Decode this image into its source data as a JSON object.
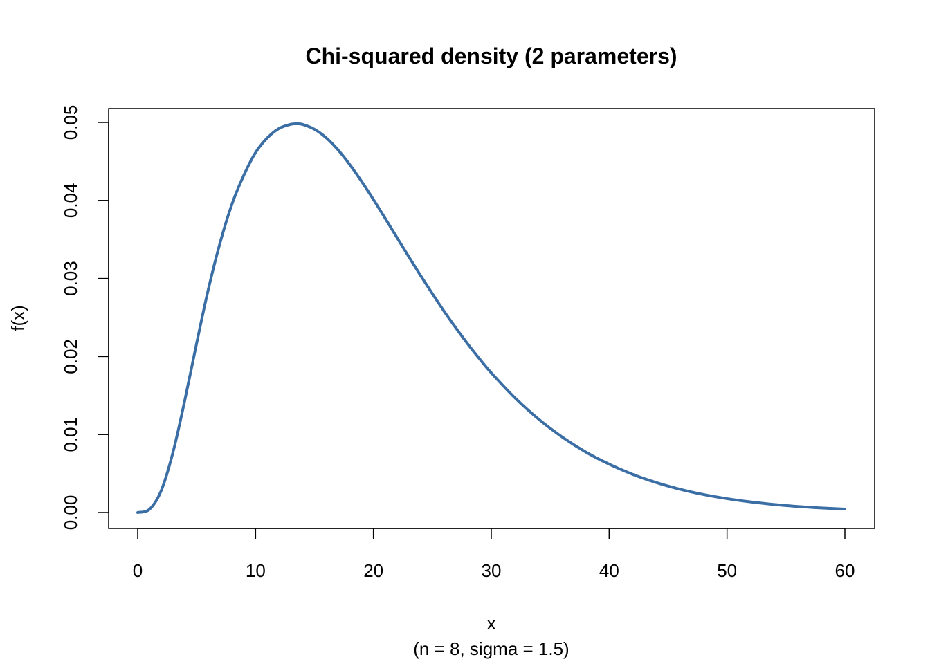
{
  "chart_data": {
    "type": "line",
    "title": "Chi-squared density (2 parameters)",
    "xlabel": "x",
    "subtitle": "(n = 8, sigma = 1.5)",
    "ylabel": "f(x)",
    "xlim": [
      0,
      60
    ],
    "ylim": [
      0,
      0.05
    ],
    "x_ticks": [
      0,
      10,
      20,
      30,
      40,
      50,
      60
    ],
    "x_tick_labels": [
      "0",
      "10",
      "20",
      "30",
      "40",
      "50",
      "60"
    ],
    "y_ticks": [
      0,
      0.01,
      0.02,
      0.03,
      0.04,
      0.05
    ],
    "y_tick_labels": [
      "0.00",
      "0.01",
      "0.02",
      "0.03",
      "0.04",
      "0.05"
    ],
    "grid": false,
    "series": [
      {
        "color": "#3A6EA5",
        "x": [
          0,
          1,
          2,
          3,
          4,
          5,
          6,
          7,
          8,
          9,
          10,
          11,
          12,
          13,
          13.5,
          14,
          15,
          16,
          17,
          18,
          19,
          20,
          21,
          22,
          23,
          24,
          25,
          26,
          27,
          28,
          29,
          30,
          32,
          34,
          36,
          38,
          40,
          42,
          44,
          46,
          48,
          50,
          52,
          54,
          56,
          58,
          60
        ],
        "y": [
          0,
          0.00042,
          0.00283,
          0.00776,
          0.01441,
          0.0217,
          0.02866,
          0.03463,
          0.03954,
          0.04322,
          0.04614,
          0.04802,
          0.04923,
          0.04976,
          0.04982,
          0.04974,
          0.04912,
          0.04802,
          0.04648,
          0.04458,
          0.04243,
          0.04012,
          0.0377,
          0.03524,
          0.03279,
          0.03038,
          0.02805,
          0.02579,
          0.02365,
          0.02161,
          0.0197,
          0.0179,
          0.01471,
          0.01199,
          0.0097,
          0.00777,
          0.0062,
          0.00489,
          0.00384,
          0.00299,
          0.00231,
          0.00178,
          0.00136,
          0.00103,
          0.00078,
          0.00059,
          0.00044
        ]
      }
    ]
  }
}
